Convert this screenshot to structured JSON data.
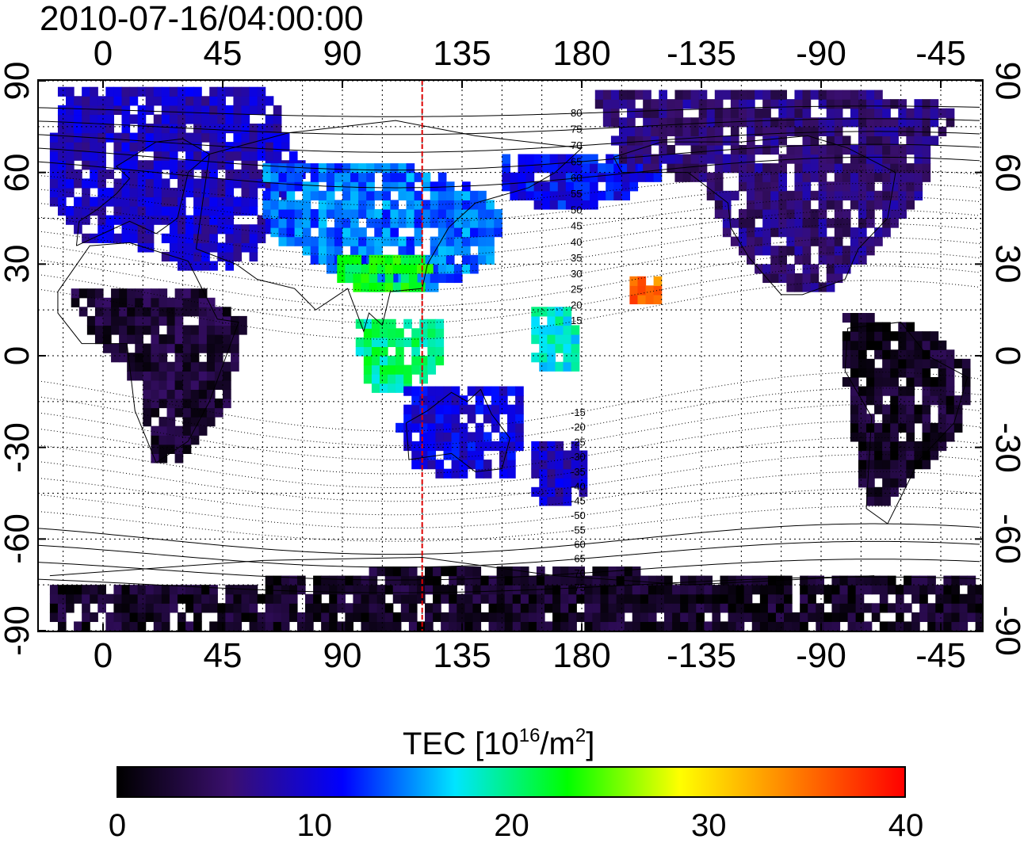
{
  "title": "2010-07-16/04:00:00",
  "map": {
    "lon_ticks": [
      "0",
      "45",
      "90",
      "135",
      "180",
      "-135",
      "-90",
      "-45"
    ],
    "lat_ticks": [
      "90",
      "60",
      "30",
      "0",
      "-30",
      "-60",
      "-90"
    ],
    "contour_labels_north": [
      "80",
      "75",
      "70",
      "65",
      "60",
      "55",
      "50",
      "45",
      "40",
      "35",
      "30",
      "25",
      "20",
      "15"
    ],
    "contour_labels_south": [
      "-15",
      "-20",
      "-25",
      "-30",
      "-35",
      "-40",
      "-45",
      "-50",
      "-55",
      "-60",
      "-65",
      "-70",
      "-75"
    ],
    "subsolar_meridian_lon": 120,
    "meridian_color": "#dd0000",
    "no_data_color": "#ffffff",
    "regions": [
      {
        "name": "europe-north-asia",
        "tec": 9
      },
      {
        "name": "east-asia",
        "tec": 14
      },
      {
        "name": "south-asia-green",
        "tec": 22
      },
      {
        "name": "indonesia",
        "tec": 20
      },
      {
        "name": "australia",
        "tec": 10
      },
      {
        "name": "new-zealand",
        "tec": 9
      },
      {
        "name": "alaska-pacific",
        "tec": 11
      },
      {
        "name": "north-america",
        "tec": 6
      },
      {
        "name": "south-america",
        "tec": 2
      },
      {
        "name": "africa",
        "tec": 3
      },
      {
        "name": "antarctica",
        "tec": 2
      },
      {
        "name": "hawaii-spot",
        "tec": 35
      },
      {
        "name": "pacific-islands",
        "tec": 18
      }
    ]
  },
  "colorbar": {
    "title_main": "TEC  [10",
    "title_exp": "16",
    "title_unit": "/m",
    "title_unit_exp": "2",
    "title_end": "]",
    "min": 0,
    "max": 40,
    "tick_labels": [
      "0",
      "10",
      "20",
      "30",
      "40"
    ],
    "stops": [
      "#000000",
      "#3a0f6e",
      "#0000ff",
      "#00e5ff",
      "#00ff00",
      "#ffff00",
      "#ff8000",
      "#ff0000"
    ]
  }
}
